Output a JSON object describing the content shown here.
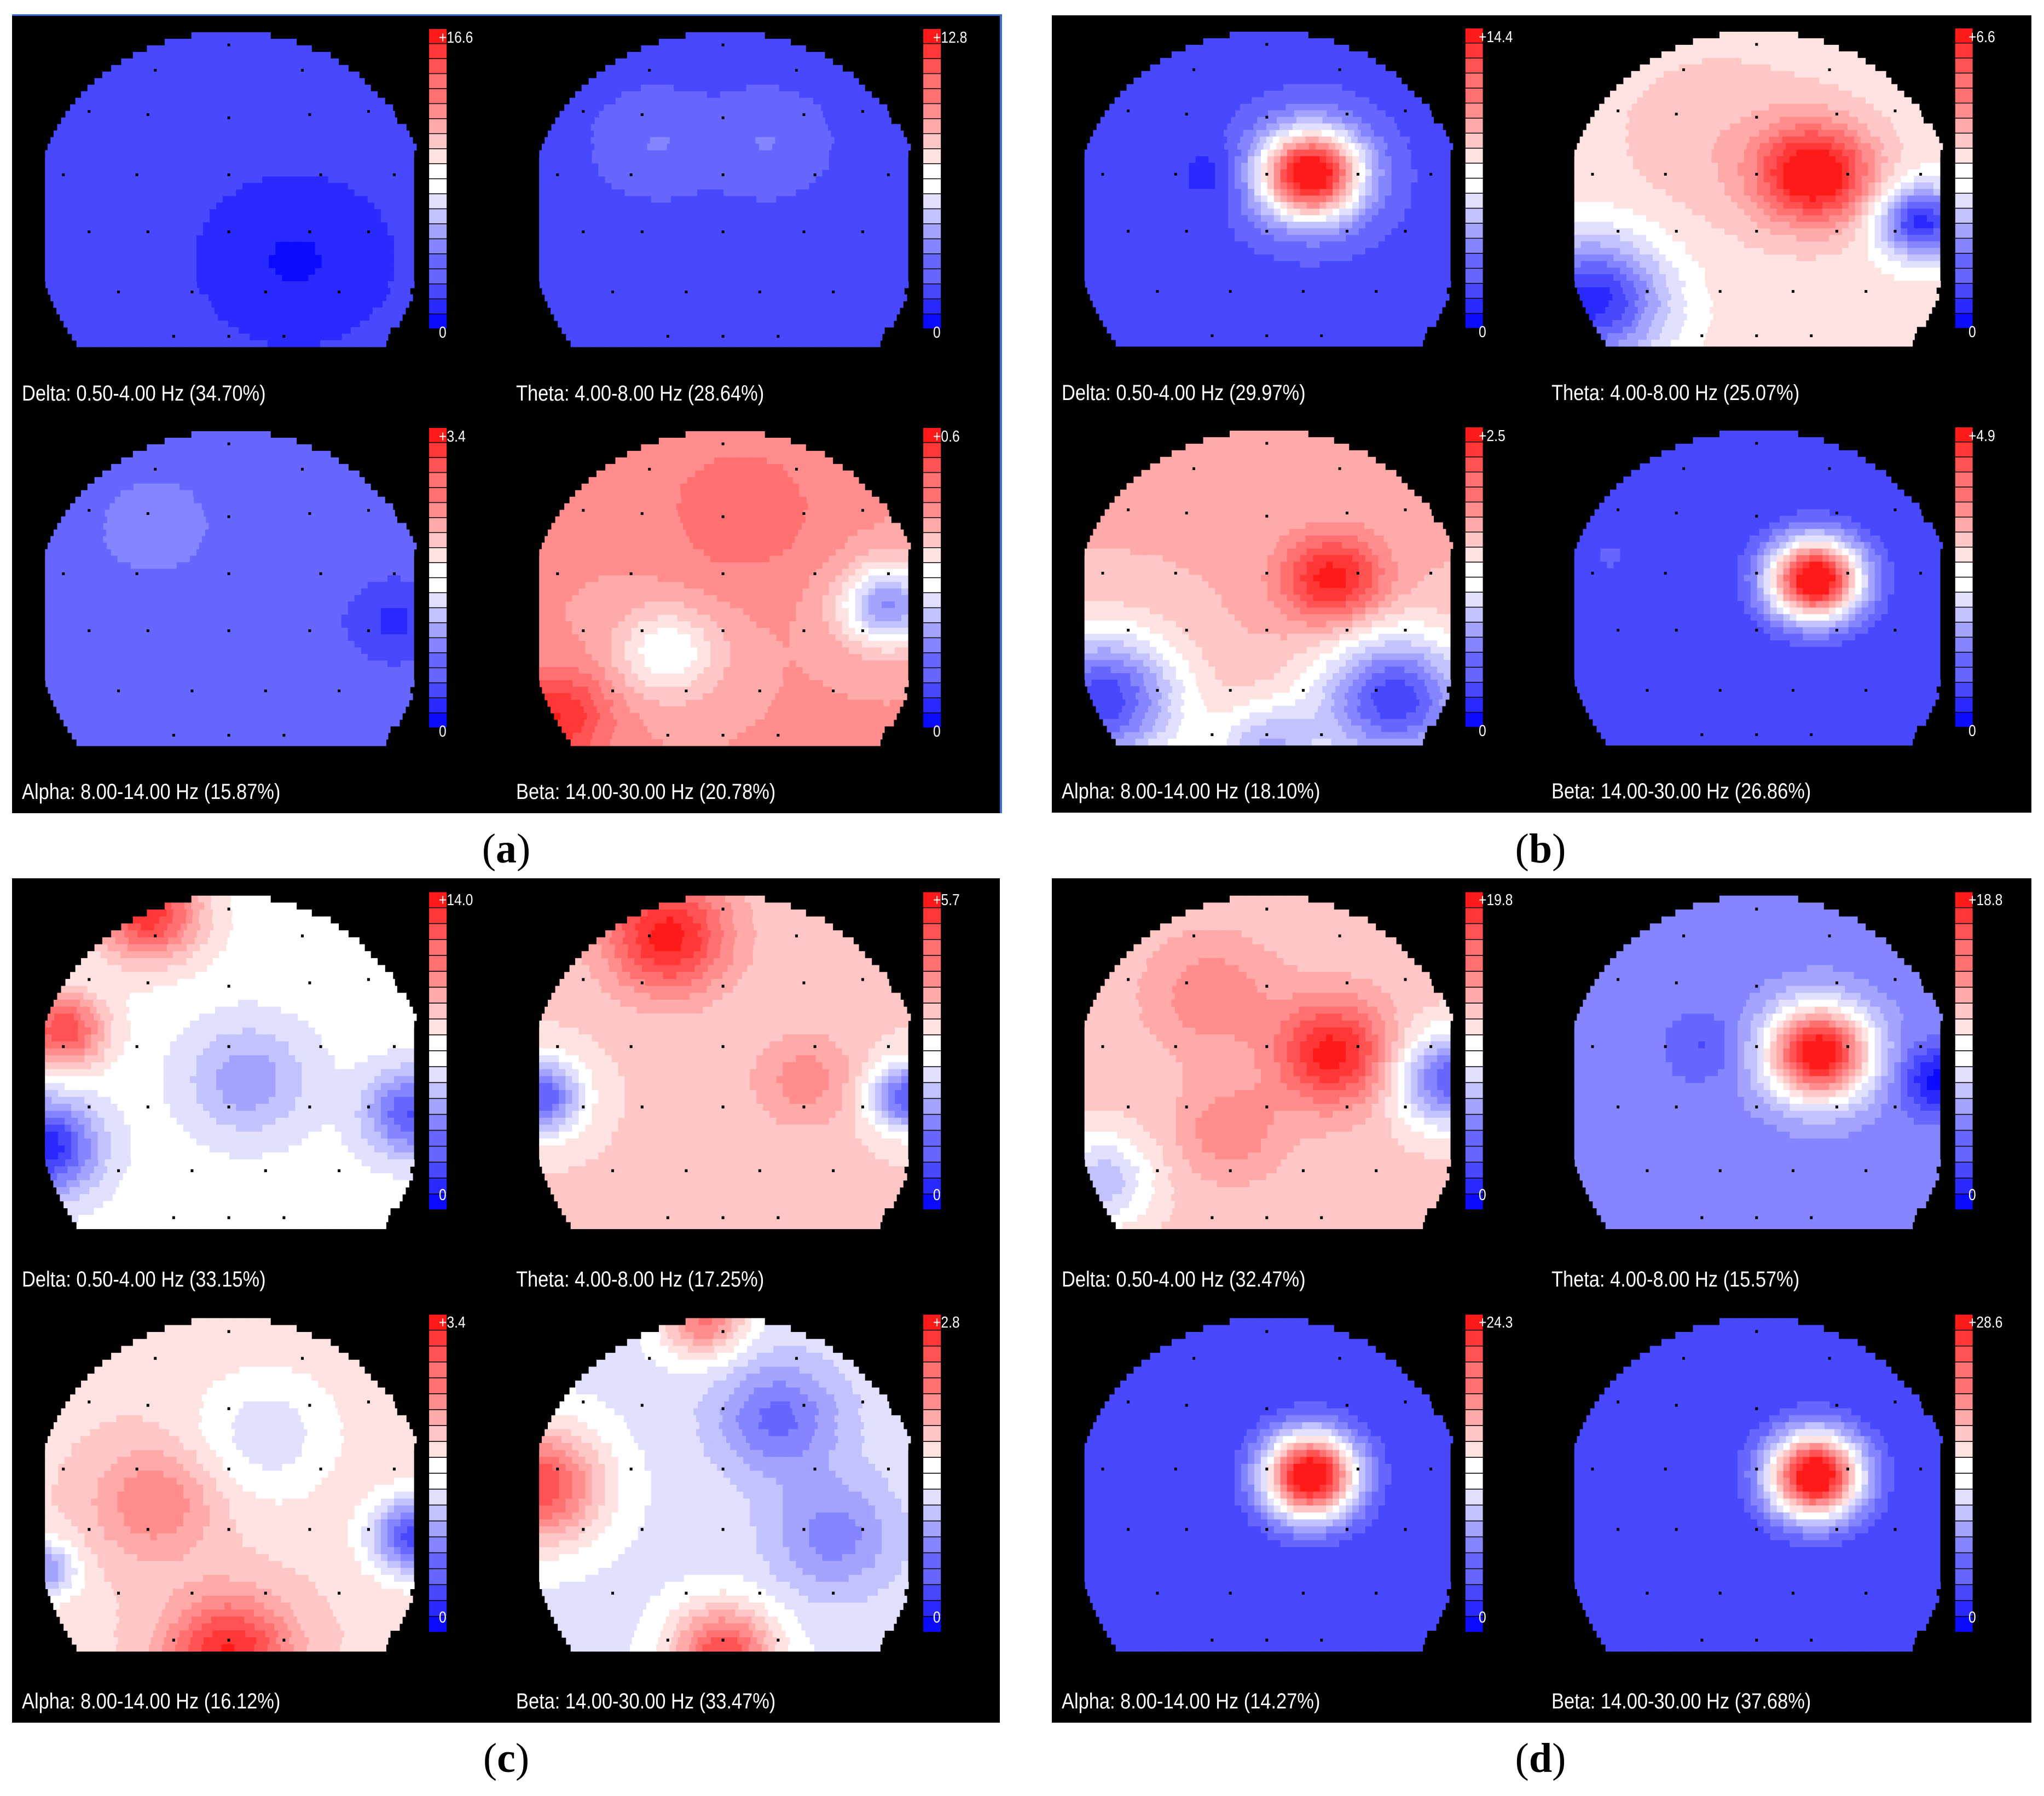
{
  "colors": {
    "background": "#000000",
    "high": "#ff1a1a",
    "mid": "#ffffff",
    "low": "#0b0bff",
    "electrode": "#000000"
  },
  "panels": [
    {
      "caption": "a",
      "maps": [
        {
          "label": "Delta: 0.50-4.00 Hz (34.70%)",
          "scale_max": "+16.6",
          "scale_min": "0",
          "base": 0.1,
          "hotspots": [
            {
              "u": 0.68,
              "v": 0.72,
              "a": -0.08,
              "s": 0.12
            }
          ]
        },
        {
          "label": "Theta: 4.00-8.00 Hz (28.64%)",
          "scale_max": "+12.8",
          "scale_min": "0",
          "base": 0.14,
          "hotspots": [
            {
              "u": 0.32,
              "v": 0.35,
              "a": 0.08,
              "s": 0.1
            },
            {
              "u": 0.62,
              "v": 0.35,
              "a": 0.08,
              "s": 0.1
            }
          ]
        },
        {
          "label": "Alpha: 8.00-14.00 Hz (15.87%)",
          "scale_max": "+3.4",
          "scale_min": "0",
          "base": 0.18,
          "hotspots": [
            {
              "u": 0.3,
              "v": 0.3,
              "a": 0.06,
              "s": 0.15
            },
            {
              "u": 0.95,
              "v": 0.6,
              "a": -0.1,
              "s": 0.08
            }
          ]
        },
        {
          "label": "Beta: 14.00-30.00 Hz (20.78%)",
          "scale_max": "+0.6",
          "scale_min": "0",
          "base": 0.72,
          "hotspots": [
            {
              "u": 0.05,
              "v": 0.9,
              "a": 0.25,
              "s": 0.1
            },
            {
              "u": 0.35,
              "v": 0.7,
              "a": -0.25,
              "s": 0.1
            },
            {
              "u": 0.95,
              "v": 0.55,
              "a": -0.45,
              "s": 0.09
            },
            {
              "u": 0.55,
              "v": 0.25,
              "a": 0.12,
              "s": 0.15
            }
          ]
        }
      ]
    },
    {
      "caption": "b",
      "maps": [
        {
          "label": "Delta: 0.50-4.00 Hz (29.97%)",
          "scale_max": "+14.4",
          "scale_min": "0",
          "base": 0.14,
          "hotspots": [
            {
              "u": 0.62,
              "v": 0.45,
              "a": 0.95,
              "s": 0.1
            },
            {
              "u": 0.35,
              "v": 0.45,
              "a": -0.08,
              "s": 0.07
            }
          ]
        },
        {
          "label": "Theta: 4.00-8.00 Hz (25.07%)",
          "scale_max": "+6.6",
          "scale_min": "0",
          "base": 0.56,
          "hotspots": [
            {
              "u": 0.66,
              "v": 0.45,
              "a": 0.5,
              "s": 0.11
            },
            {
              "u": 0.4,
              "v": 0.35,
              "a": 0.08,
              "s": 0.2
            },
            {
              "u": 0.05,
              "v": 0.85,
              "a": -0.5,
              "s": 0.14
            },
            {
              "u": 0.95,
              "v": 0.6,
              "a": -0.5,
              "s": 0.08
            }
          ]
        },
        {
          "label": "Alpha: 8.00-14.00 Hz (18.10%)",
          "scale_max": "+2.5",
          "scale_min": "0",
          "base": 0.66,
          "hotspots": [
            {
              "u": 0.68,
              "v": 0.47,
              "a": 0.35,
              "s": 0.1
            },
            {
              "u": 0.05,
              "v": 0.85,
              "a": -0.55,
              "s": 0.15
            },
            {
              "u": 0.85,
              "v": 0.85,
              "a": -0.55,
              "s": 0.15
            },
            {
              "u": 0.5,
              "v": 1.0,
              "a": -0.3,
              "s": 0.1
            }
          ]
        },
        {
          "label": "Beta: 14.00-30.00 Hz (26.86%)",
          "scale_max": "+4.9",
          "scale_min": "0",
          "base": 0.1,
          "hotspots": [
            {
              "u": 0.66,
              "v": 0.47,
              "a": 1.0,
              "s": 0.09
            },
            {
              "u": 0.1,
              "v": 0.4,
              "a": 0.06,
              "s": 0.08
            }
          ]
        }
      ]
    },
    {
      "caption": "c",
      "maps": [
        {
          "label": "Delta: 0.50-4.00 Hz (33.15%)",
          "scale_max": "+14.0",
          "scale_min": "0",
          "base": 0.5,
          "hotspots": [
            {
              "u": 0.28,
              "v": 0.05,
              "a": 0.45,
              "s": 0.1
            },
            {
              "u": 0.05,
              "v": 0.4,
              "a": 0.4,
              "s": 0.08
            },
            {
              "u": 0.0,
              "v": 0.75,
              "a": -0.45,
              "s": 0.1
            },
            {
              "u": 1.0,
              "v": 0.65,
              "a": -0.35,
              "s": 0.09
            },
            {
              "u": 0.55,
              "v": 0.55,
              "a": -0.2,
              "s": 0.12
            }
          ]
        },
        {
          "label": "Theta: 4.00-8.00 Hz (17.25%)",
          "scale_max": "+5.7",
          "scale_min": "0",
          "base": 0.6,
          "hotspots": [
            {
              "u": 0.35,
              "v": 0.12,
              "a": 0.4,
              "s": 0.12
            },
            {
              "u": 0.72,
              "v": 0.55,
              "a": 0.15,
              "s": 0.1
            },
            {
              "u": 0.0,
              "v": 0.6,
              "a": -0.45,
              "s": 0.08
            },
            {
              "u": 1.0,
              "v": 0.6,
              "a": -0.45,
              "s": 0.07
            }
          ]
        },
        {
          "label": "Alpha: 8.00-14.00 Hz (16.12%)",
          "scale_max": "+3.4",
          "scale_min": "0",
          "base": 0.58,
          "hotspots": [
            {
              "u": 0.5,
              "v": 1.0,
              "a": 0.4,
              "s": 0.12
            },
            {
              "u": 0.3,
              "v": 0.55,
              "a": 0.2,
              "s": 0.12
            },
            {
              "u": 0.6,
              "v": 0.35,
              "a": -0.15,
              "s": 0.14
            },
            {
              "u": 1.0,
              "v": 0.65,
              "a": -0.45,
              "s": 0.08
            },
            {
              "u": 0.0,
              "v": 0.75,
              "a": -0.3,
              "s": 0.06
            }
          ]
        },
        {
          "label": "Beta: 14.00-30.00 Hz (33.47%)",
          "scale_max": "+2.8",
          "scale_min": "0",
          "base": 0.45,
          "hotspots": [
            {
              "u": 0.0,
              "v": 0.5,
              "a": 0.45,
              "s": 0.12
            },
            {
              "u": 0.5,
              "v": 1.0,
              "a": 0.45,
              "s": 0.1
            },
            {
              "u": 0.45,
              "v": 0.0,
              "a": 0.35,
              "s": 0.08
            },
            {
              "u": 0.65,
              "v": 0.3,
              "a": -0.25,
              "s": 0.12
            },
            {
              "u": 0.8,
              "v": 0.65,
              "a": -0.2,
              "s": 0.12
            }
          ]
        }
      ]
    },
    {
      "caption": "d",
      "maps": [
        {
          "label": "Delta: 0.50-4.00 Hz (32.47%)",
          "scale_max": "+19.8",
          "scale_min": "0",
          "base": 0.62,
          "hotspots": [
            {
              "u": 0.68,
              "v": 0.47,
              "a": 0.38,
              "s": 0.11
            },
            {
              "u": 0.35,
              "v": 0.3,
              "a": 0.15,
              "s": 0.12
            },
            {
              "u": 0.4,
              "v": 0.7,
              "a": 0.15,
              "s": 0.1
            },
            {
              "u": 1.0,
              "v": 0.55,
              "a": -0.45,
              "s": 0.1
            },
            {
              "u": 0.05,
              "v": 0.85,
              "a": -0.25,
              "s": 0.1
            }
          ]
        },
        {
          "label": "Theta: 4.00-8.00 Hz (15.57%)",
          "scale_max": "+18.8",
          "scale_min": "0",
          "base": 0.25,
          "hotspots": [
            {
              "u": 0.67,
              "v": 0.47,
              "a": 0.8,
              "s": 0.1
            },
            {
              "u": 1.0,
              "v": 0.55,
              "a": -0.25,
              "s": 0.07
            },
            {
              "u": 0.35,
              "v": 0.45,
              "a": -0.1,
              "s": 0.07
            }
          ]
        },
        {
          "label": "Alpha: 8.00-14.00 Hz (14.27%)",
          "scale_max": "+24.3",
          "scale_min": "0",
          "base": 0.1,
          "hotspots": [
            {
              "u": 0.62,
              "v": 0.47,
              "a": 1.0,
              "s": 0.09
            }
          ]
        },
        {
          "label": "Beta: 14.00-30.00 Hz (37.68%)",
          "scale_max": "+28.6",
          "scale_min": "0",
          "base": 0.1,
          "hotspots": [
            {
              "u": 0.66,
              "v": 0.47,
              "a": 1.0,
              "s": 0.09
            }
          ]
        }
      ]
    }
  ]
}
